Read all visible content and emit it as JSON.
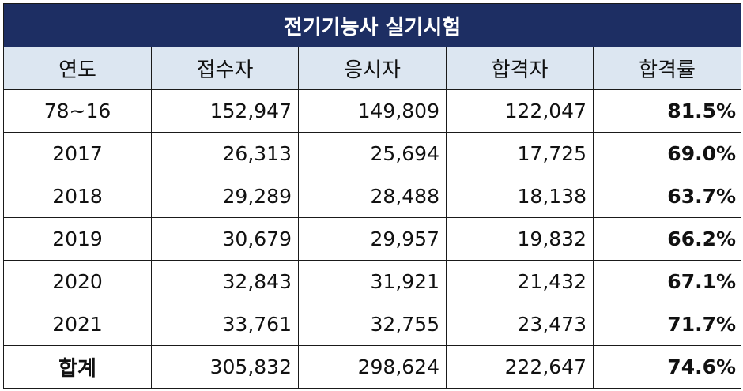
{
  "title": "전기기능사 실기시험",
  "headers": [
    "연도",
    "접수자",
    "응시자",
    "합격자",
    "합격률"
  ],
  "rows": [
    {
      "year": "78~16",
      "applicants": "152,947",
      "examinees": "149,809",
      "passers": "122,047",
      "rate": "81.5%"
    },
    {
      "year": "2017",
      "applicants": "26,313",
      "examinees": "25,694",
      "passers": "17,725",
      "rate": "69.0%"
    },
    {
      "year": "2018",
      "applicants": "29,289",
      "examinees": "28,488",
      "passers": "18,138",
      "rate": "63.7%"
    },
    {
      "year": "2019",
      "applicants": "30,679",
      "examinees": "29,957",
      "passers": "19,832",
      "rate": "66.2%"
    },
    {
      "year": "2020",
      "applicants": "32,843",
      "examinees": "31,921",
      "passers": "21,432",
      "rate": "67.1%"
    },
    {
      "year": "2021",
      "applicants": "33,761",
      "examinees": "32,755",
      "passers": "23,473",
      "rate": "71.7%"
    },
    {
      "year": "합계",
      "applicants": "305,832",
      "examinees": "298,624",
      "passers": "222,647",
      "rate": "74.6%"
    }
  ],
  "colors": {
    "title_bg": "#1d2e63",
    "header_bg": "#dce6f1",
    "border": "#1a1a1a"
  }
}
